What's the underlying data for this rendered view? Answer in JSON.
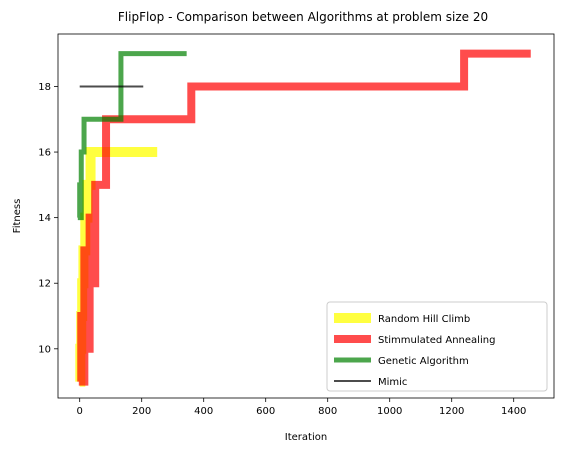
{
  "chart_data": {
    "type": "line",
    "title": "FlipFlop - Comparison between Algorithms at problem size 20",
    "xlabel": "Iteration",
    "ylabel": "Fitness",
    "xlim": [
      -70,
      1530
    ],
    "ylim": [
      8.5,
      19.6
    ],
    "xticks": [
      0,
      200,
      400,
      600,
      800,
      1000,
      1200,
      1400
    ],
    "yticks": [
      10,
      12,
      14,
      16,
      18
    ],
    "legend_position": "lower-right",
    "grid": false,
    "series": [
      {
        "name": "Random Hill Climb",
        "color": "#ffff00",
        "opacity": 0.75,
        "width": 10,
        "x": [
          0,
          2,
          2,
          5,
          5,
          8,
          8,
          12,
          12,
          18,
          18,
          25,
          25,
          35,
          35,
          250
        ],
        "y": [
          9,
          9,
          10,
          10,
          11,
          11,
          12,
          12,
          13,
          13,
          14,
          14,
          15,
          15,
          16,
          16
        ]
      },
      {
        "name": "Stimmulated Annealing",
        "color": "#ff0000",
        "opacity": 0.7,
        "width": 8,
        "x": [
          0,
          5,
          5,
          10,
          10,
          15,
          15,
          25,
          25,
          32,
          32,
          38,
          38,
          50,
          50,
          75,
          75,
          85,
          85,
          360,
          360,
          1240,
          1240,
          1455
        ],
        "y": [
          9,
          9,
          11,
          11,
          9,
          9,
          13,
          13,
          10,
          10,
          14,
          14,
          12,
          12,
          15,
          15,
          15,
          15,
          17,
          17,
          18,
          18,
          19,
          19
        ]
      },
      {
        "name": "Genetic Algorithm",
        "color": "#008000",
        "opacity": 0.7,
        "width": 5,
        "x": [
          0,
          0,
          2,
          2,
          5,
          5,
          8,
          8,
          14,
          14,
          133,
          133,
          345
        ],
        "y": [
          14,
          15,
          15,
          14,
          14,
          16,
          16,
          16,
          16,
          17,
          17,
          19,
          19
        ]
      },
      {
        "name": "Mimic",
        "color": "#000000",
        "opacity": 0.7,
        "width": 2,
        "x": [
          0,
          205
        ],
        "y": [
          18,
          18
        ]
      }
    ]
  }
}
